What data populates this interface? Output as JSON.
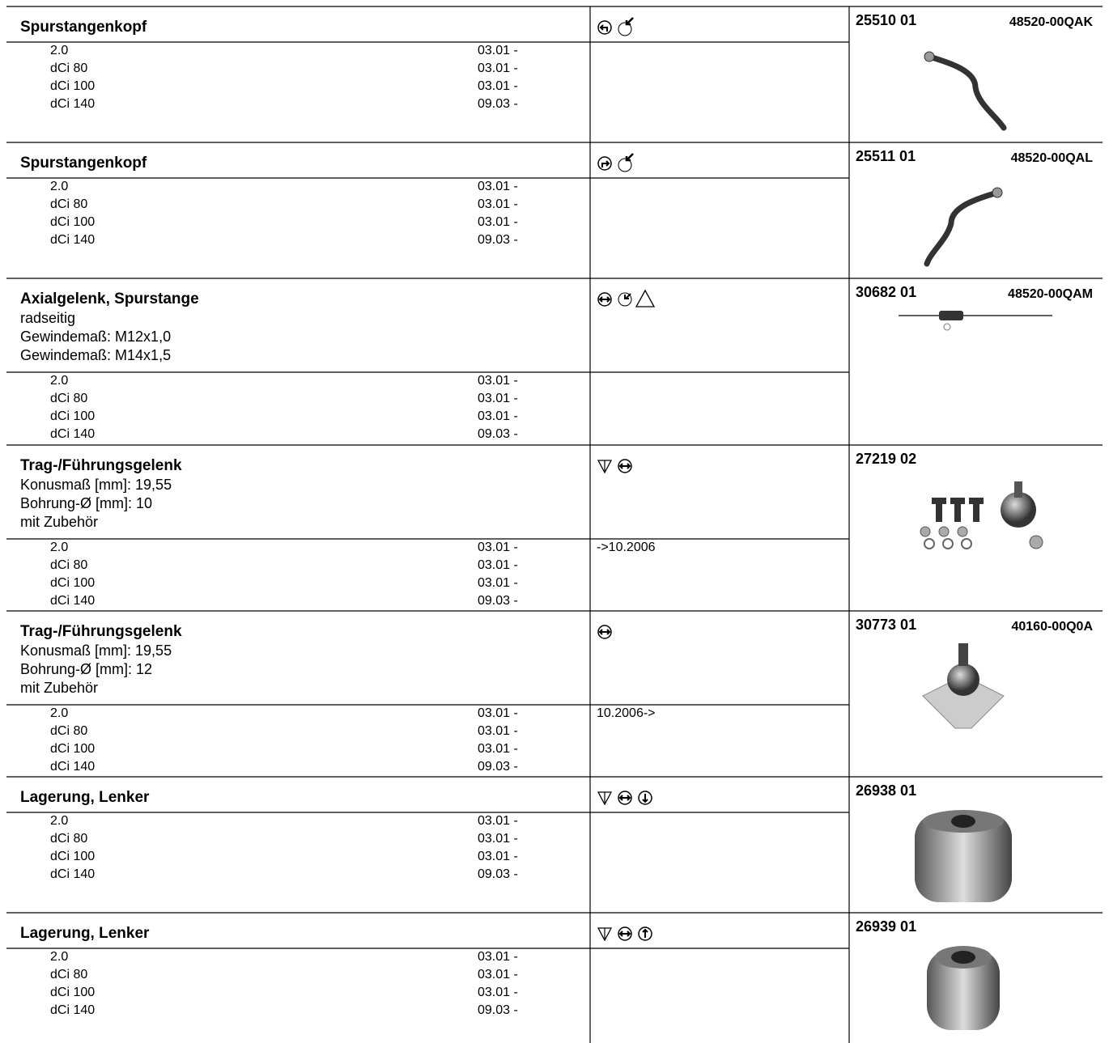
{
  "entries": [
    {
      "title": "Spurstangenkopf",
      "details": [],
      "variants": [
        {
          "engine": "2.0",
          "date": "03.01 -"
        },
        {
          "engine": "dCi 80",
          "date": "03.01 -"
        },
        {
          "engine": "dCi 100",
          "date": "03.01 -"
        },
        {
          "engine": "dCi 140",
          "date": "09.03 -"
        }
      ],
      "part_number": "25510 01",
      "oem": "48520-00QAK"
    },
    {
      "title": "Spurstangenkopf",
      "details": [],
      "variants": [
        {
          "engine": "2.0",
          "date": "03.01 -"
        },
        {
          "engine": "dCi 80",
          "date": "03.01 -"
        },
        {
          "engine": "dCi 100",
          "date": "03.01 -"
        },
        {
          "engine": "dCi 140",
          "date": "09.03 -"
        }
      ],
      "part_number": "25511 01",
      "oem": "48520-00QAL"
    },
    {
      "title": "Axialgelenk, Spurstange",
      "details": [
        "radseitig",
        "Gewindemaß: M12x1,0",
        "Gewindemaß: M14x1,5"
      ],
      "variants": [
        {
          "engine": "2.0",
          "date": "03.01 -"
        },
        {
          "engine": "dCi 80",
          "date": "03.01 -"
        },
        {
          "engine": "dCi 100",
          "date": "03.01 -"
        },
        {
          "engine": "dCi 140",
          "date": "09.03 -"
        }
      ],
      "part_number": "30682 01",
      "oem": "48520-00QAM"
    },
    {
      "title": "Trag-/Führungsgelenk",
      "details": [
        "Konusmaß [mm]: 19,55",
        "Bohrung-Ø [mm]: 10",
        "mit Zubehör"
      ],
      "variants": [
        {
          "engine": "2.0",
          "date": "03.01 -"
        },
        {
          "engine": "dCi 80",
          "date": "03.01 -"
        },
        {
          "engine": "dCi 100",
          "date": "03.01 -"
        },
        {
          "engine": "dCi 140",
          "date": "09.03 -"
        }
      ],
      "note": "->10.2006",
      "part_number": "27219 02"
    },
    {
      "title": "Trag-/Führungsgelenk",
      "details": [
        "Konusmaß [mm]: 19,55",
        "Bohrung-Ø [mm]: 12",
        "mit Zubehör"
      ],
      "variants": [
        {
          "engine": "2.0",
          "date": "03.01 -"
        },
        {
          "engine": "dCi 80",
          "date": "03.01 -"
        },
        {
          "engine": "dCi 100",
          "date": "03.01 -"
        },
        {
          "engine": "dCi 140",
          "date": "09.03 -"
        }
      ],
      "note": "10.2006->",
      "part_number": "30773 01",
      "oem": "40160-00Q0A"
    },
    {
      "title": "Lagerung, Lenker",
      "details": [],
      "variants": [
        {
          "engine": "2.0",
          "date": "03.01 -"
        },
        {
          "engine": "dCi 80",
          "date": "03.01 -"
        },
        {
          "engine": "dCi 100",
          "date": "03.01 -"
        },
        {
          "engine": "dCi 140",
          "date": "09.03 -"
        }
      ],
      "part_number": "26938 01"
    },
    {
      "title": "Lagerung, Lenker",
      "details": [],
      "variants": [
        {
          "engine": "2.0",
          "date": "03.01 -"
        },
        {
          "engine": "dCi 80",
          "date": "03.01 -"
        },
        {
          "engine": "dCi 100",
          "date": "03.01 -"
        },
        {
          "engine": "dCi 140",
          "date": "09.03 -"
        }
      ],
      "part_number": "26939 01"
    }
  ]
}
